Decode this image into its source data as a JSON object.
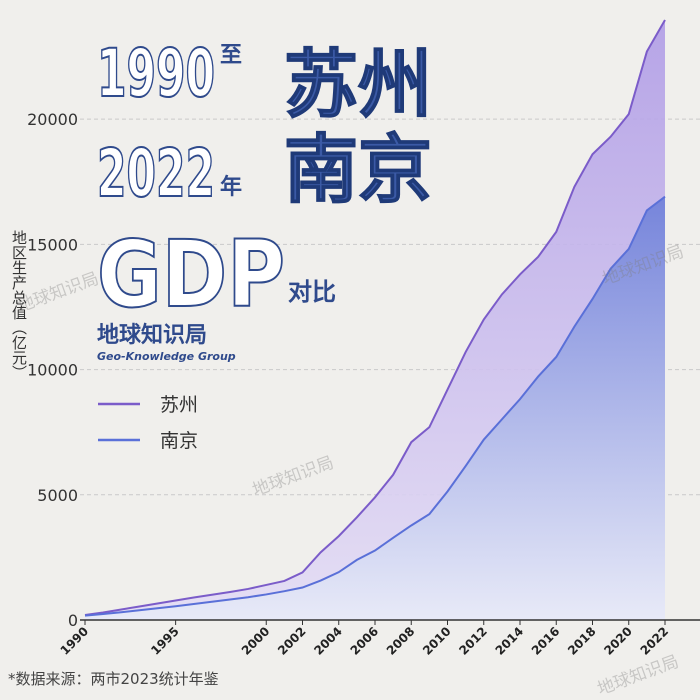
{
  "chart_data": {
    "type": "area",
    "title": {
      "line1": "1990",
      "line1_suffix": "至",
      "line2": "2022",
      "line2_suffix": "年",
      "line3": "GDP",
      "line3_suffix": "对比",
      "cities": [
        "苏州",
        "南京"
      ]
    },
    "brand": "地球知识局",
    "brand_en": "Geo-Knowledge Group",
    "watermark": "地球知识局",
    "y_label": "地区生产总值（亿元）",
    "source": "*数据来源：两市2023统计年鉴",
    "x": [
      1990,
      1991,
      1992,
      1993,
      1994,
      1995,
      1996,
      1997,
      1998,
      1999,
      2000,
      2001,
      2002,
      2003,
      2004,
      2005,
      2006,
      2007,
      2008,
      2009,
      2010,
      2011,
      2012,
      2013,
      2014,
      2015,
      2016,
      2017,
      2018,
      2019,
      2020,
      2021,
      2022
    ],
    "series": [
      {
        "name": "苏州",
        "color": "#7b5cc9",
        "fill": "#b7a6e8",
        "values": [
          202,
          300,
          420,
          540,
          660,
          780,
          900,
          1010,
          1120,
          1240,
          1400,
          1560,
          1900,
          2700,
          3350,
          4100,
          4900,
          5800,
          7100,
          7700,
          9200,
          10700,
          12000,
          13000,
          13800,
          14500,
          15500,
          17300,
          18600,
          19300,
          20200,
          22700,
          23958
        ]
      },
      {
        "name": "南京",
        "color": "#5a70d8",
        "fill": "#7d8ee0",
        "values": [
          176,
          240,
          310,
          390,
          470,
          550,
          640,
          730,
          820,
          910,
          1021,
          1150,
          1297,
          1576,
          1910,
          2400,
          2774,
          3284,
          3775,
          4230,
          5131,
          6146,
          7202,
          8012,
          8821,
          9721,
          10503,
          11715,
          12820,
          14030,
          14818,
          16355,
          16907
        ]
      }
    ],
    "xlim": [
      1990,
      2022
    ],
    "ylim": [
      0,
      24000
    ],
    "xticks": [
      1990,
      1995,
      2000,
      2002,
      2004,
      2006,
      2008,
      2010,
      2012,
      2014,
      2016,
      2018,
      2020,
      2022
    ],
    "yticks": [
      0,
      5000,
      10000,
      15000,
      20000
    ],
    "grid": true
  }
}
